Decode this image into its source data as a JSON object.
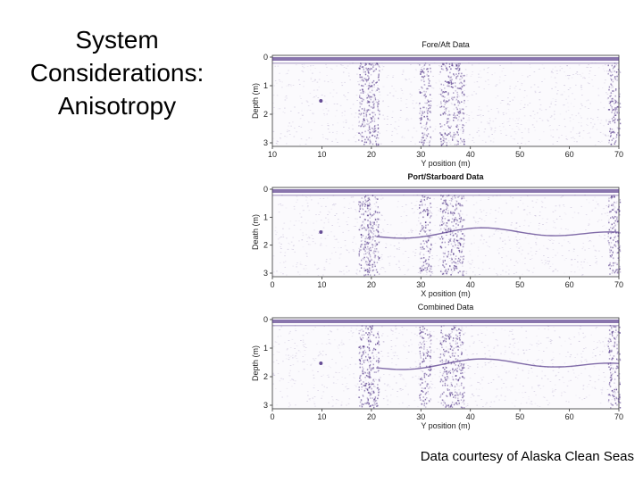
{
  "slide": {
    "title_lines": [
      "System",
      "Considerations:",
      "Anisotropy"
    ],
    "caption": "Data courtesy of Alaska Clean Seas"
  },
  "panels": [
    {
      "title": "Fore/Aft Data",
      "title_bold": false,
      "ylabel": "Depth (m)",
      "xlabel": "Y position (m)",
      "yticks": [
        "0",
        "1",
        "2",
        "3"
      ],
      "xticks": [
        "10",
        "10",
        "20",
        "30",
        "40",
        "50",
        "60",
        "70"
      ],
      "palette": "#4b2e83"
    },
    {
      "title": "Port/Starboard Data",
      "title_bold": true,
      "ylabel": "Death (m)",
      "xlabel": "X position (m)",
      "yticks": [
        "0",
        "1",
        "2",
        "3"
      ],
      "xticks": [
        "0",
        "10",
        "20",
        "30",
        "40",
        "50",
        "60",
        "70"
      ],
      "palette": "#4b2e83"
    },
    {
      "title": "Combined Data",
      "title_bold": false,
      "ylabel": "Depth (m)",
      "xlabel": "Y position (m)",
      "yticks": [
        "0",
        "1",
        "2",
        "3"
      ],
      "xticks": [
        "0",
        "10",
        "20",
        "30",
        "40",
        "50",
        "60",
        "70"
      ],
      "palette": "#4b2e83"
    }
  ]
}
